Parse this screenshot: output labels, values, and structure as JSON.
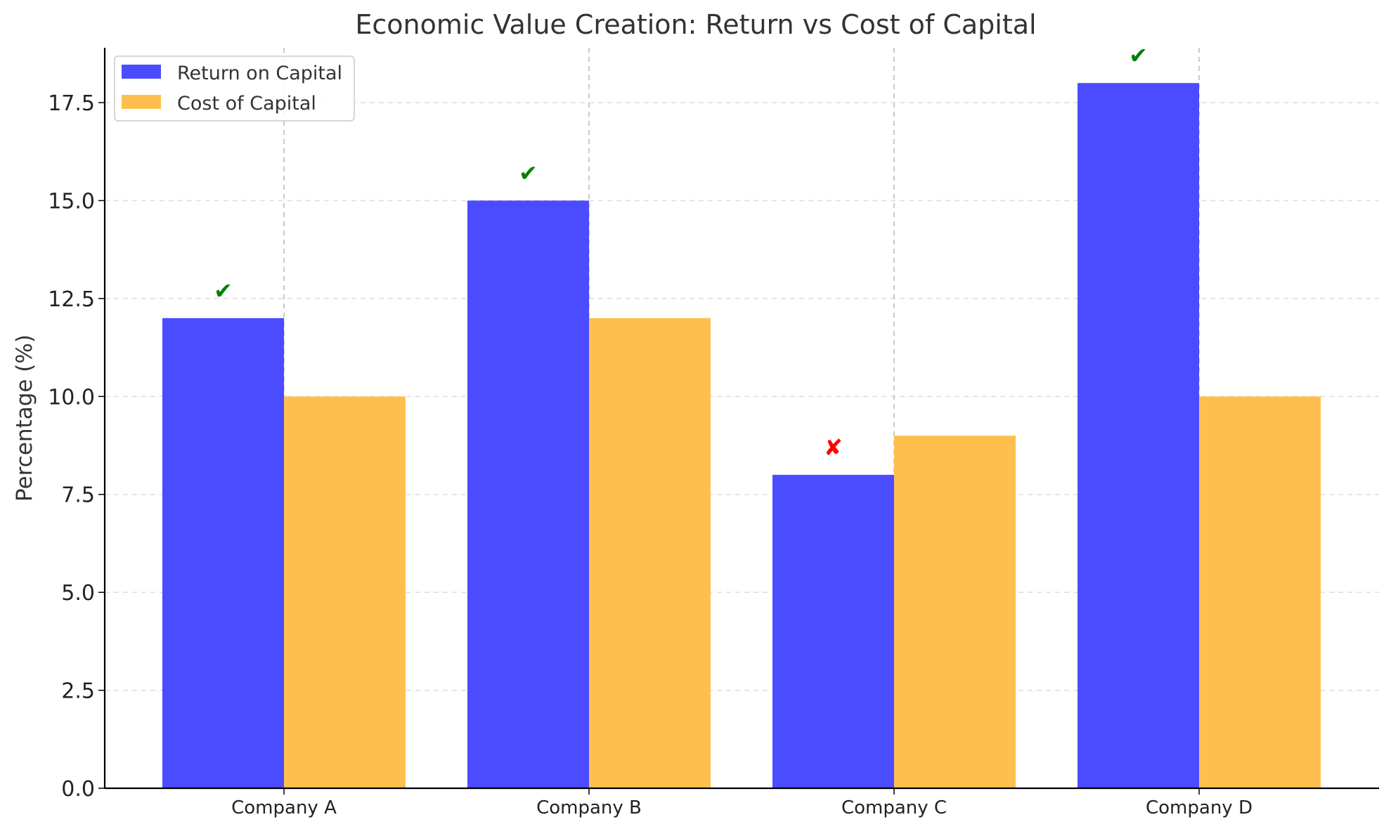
{
  "chart_data": {
    "type": "bar",
    "title": "Economic Value Creation: Return vs Cost of Capital",
    "xlabel": "",
    "ylabel": "Percentage (%)",
    "categories": [
      "Company A",
      "Company B",
      "Company C",
      "Company D"
    ],
    "series": [
      {
        "name": "Return on Capital",
        "values": [
          12,
          15,
          8,
          18
        ],
        "color": "#4b4bff"
      },
      {
        "name": "Cost of Capital",
        "values": [
          10,
          12,
          9,
          10
        ],
        "color": "#ffbf4f"
      }
    ],
    "annotations": [
      {
        "category": "Company A",
        "symbol": "✔",
        "color": "#008000"
      },
      {
        "category": "Company B",
        "symbol": "✔",
        "color": "#008000"
      },
      {
        "category": "Company C",
        "symbol": "✘",
        "color": "#ff0000"
      },
      {
        "category": "Company D",
        "symbol": "✔",
        "color": "#008000"
      }
    ],
    "ylim": [
      0,
      18.9
    ],
    "yticks": [
      "0.0",
      "2.5",
      "5.0",
      "7.5",
      "10.0",
      "12.5",
      "15.0",
      "17.5"
    ],
    "grid": true,
    "legend_position": "top-left"
  }
}
